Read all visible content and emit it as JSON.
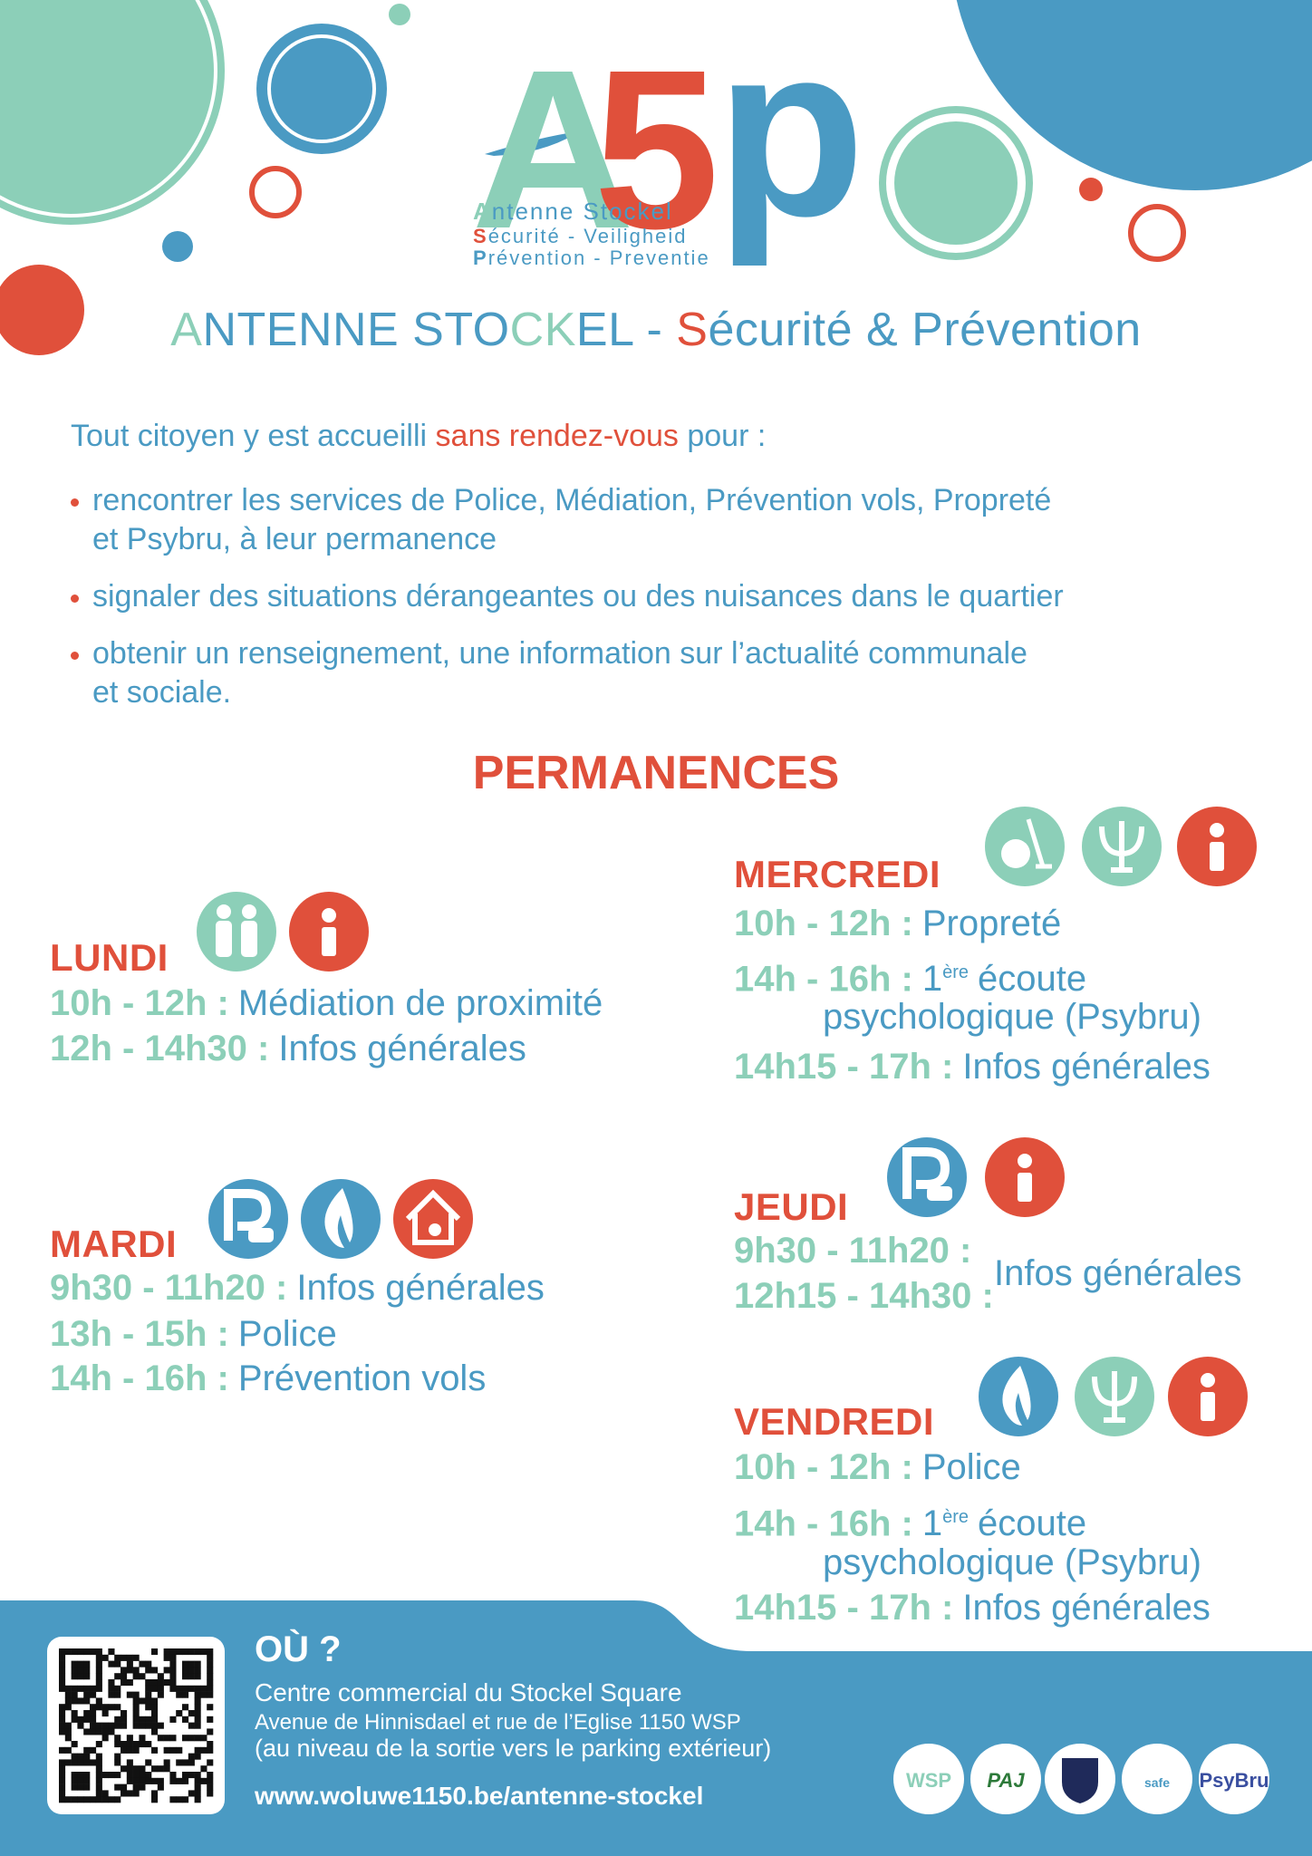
{
  "logo": {
    "letters": [
      "A",
      "5",
      "p"
    ],
    "lines": [
      "Antenne Stockel",
      "Sécurité - Veiligheid",
      "Prévention - Preventie"
    ]
  },
  "title": {
    "parts": [
      "A",
      "NTENNE STO",
      "CK",
      "EL - ",
      "S",
      "écurité & ",
      "P",
      "révention"
    ]
  },
  "intro": {
    "parts": [
      "Tout citoyen y est accueilli ",
      "sans rendez-vous",
      " pour :"
    ]
  },
  "bullets": [
    [
      "rencontrer les services de Police, Médiation, Prévention vols, Propreté",
      "et Psybru, à leur permanence"
    ],
    [
      "signaler des situations dérangeantes ou des nuisances dans le quartier"
    ],
    [
      "obtenir un renseignement, une information sur l’actualité communale",
      "et sociale."
    ]
  ],
  "section_title": "PERMANENCES",
  "days": [
    {
      "name": "LUNDI",
      "lines": [
        {
          "time": "10h - 12h :",
          "text": "Médiation de proximité"
        },
        {
          "time": "12h - 14h30 :",
          "text": "Infos générales"
        }
      ]
    },
    {
      "name": "MARDI",
      "lines": [
        {
          "time": "9h30 - 11h20  :",
          "text": "Infos générales"
        },
        {
          "time": "13h - 15h :",
          "text": "Police"
        },
        {
          "time": "14h - 16h :",
          "text": "Prévention vols"
        }
      ]
    },
    {
      "name": "MERCREDI",
      "lines": [
        {
          "time": "10h - 12h :",
          "text": "Propreté"
        },
        {
          "time": "14h - 16h :",
          "text": "1",
          "sup": "ère",
          "rest": "écoute",
          "cont": "psychologique (Psybru)"
        },
        {
          "time": "14h15 - 17h :",
          "text": "Infos générales"
        }
      ]
    },
    {
      "name": "JEUDI",
      "times": [
        "9h30 - 11h20 :",
        "12h15 - 14h30 :"
      ],
      "text": "Infos générales"
    },
    {
      "name": "VENDREDI",
      "lines": [
        {
          "time": "10h - 12h :",
          "text": "Police"
        },
        {
          "time": "14h - 16h :",
          "text": "1",
          "sup": "ère",
          "rest": "écoute",
          "cont": "psychologique (Psybru)"
        },
        {
          "time": "14h15 - 17h :",
          "text": "Infos générales"
        }
      ]
    }
  ],
  "footer": {
    "heading": "OÙ ?",
    "address": [
      "Centre commercial du Stockel Square",
      "Avenue de Hinnisdael et rue de l’Eglise 1150 WSP",
      "(au niveau de la sortie vers le parking extérieur)"
    ],
    "url": "www.woluwe1150.be/antenne-stockel",
    "logos": [
      "WSP",
      "PAJ",
      "safe",
      "PsyBru"
    ]
  }
}
